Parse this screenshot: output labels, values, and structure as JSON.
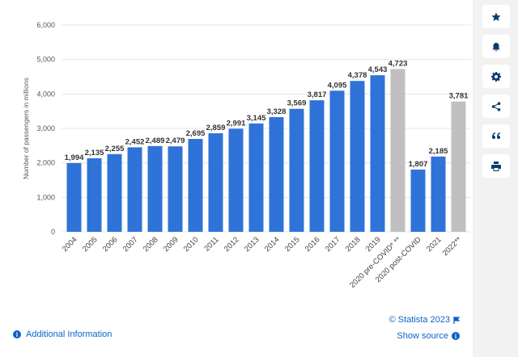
{
  "chart_data": {
    "type": "bar",
    "title": "",
    "xlabel": "",
    "ylabel": "Number of passengers in millions",
    "ylim": [
      0,
      6000
    ],
    "yticks": [
      0,
      1000,
      2000,
      3000,
      4000,
      5000,
      6000
    ],
    "ytick_labels": [
      "0",
      "1,000",
      "2,000",
      "3,000",
      "4,000",
      "5,000",
      "6,000"
    ],
    "categories": [
      "2004",
      "2005",
      "2006",
      "2007",
      "2008",
      "2009",
      "2010",
      "2011",
      "2012",
      "2013",
      "2014",
      "2015",
      "2016",
      "2017",
      "2018",
      "2019",
      "2020 pre-COVID* **",
      "2020 post-COVID",
      "2021",
      "2022**"
    ],
    "values": [
      1994,
      2135,
      2255,
      2452,
      2489,
      2479,
      2695,
      2859,
      2991,
      3145,
      3328,
      3569,
      3817,
      4095,
      4378,
      4543,
      4723,
      1807,
      2185,
      3781
    ],
    "value_labels": [
      "1,994",
      "2,135",
      "2,255",
      "2,452",
      "2,489",
      "2,479",
      "2,695",
      "2,859",
      "2,991",
      "3,145",
      "3,328",
      "3,569",
      "3,817",
      "4,095",
      "4,378",
      "4,543",
      "4,723",
      "1,807",
      "2,185",
      "3,781"
    ],
    "forecast_flags": [
      false,
      false,
      false,
      false,
      false,
      false,
      false,
      false,
      false,
      false,
      false,
      false,
      false,
      false,
      false,
      false,
      true,
      false,
      false,
      true
    ],
    "colors": {
      "actual": "#2f73d9",
      "forecast": "#c0c0c0",
      "grid": "#e4e4e4"
    },
    "grid": true,
    "legend": "none"
  },
  "footer": {
    "copyright": "© Statista 2023",
    "show_source": "Show source",
    "additional_info": "Additional Information",
    "info_glyph": "i"
  },
  "toolbar": {
    "items": [
      "star-icon",
      "bell-icon",
      "gear-icon",
      "share-icon",
      "quote-icon",
      "print-icon"
    ]
  }
}
